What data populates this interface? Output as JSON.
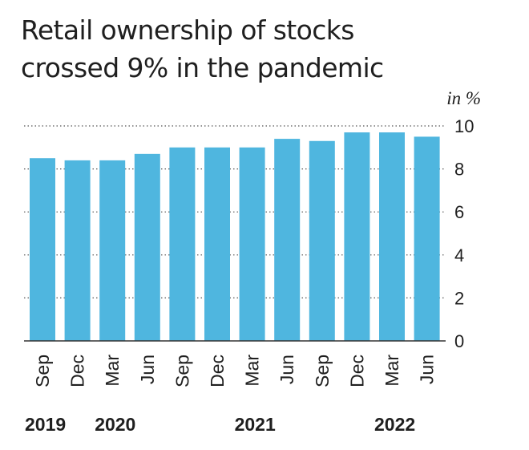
{
  "chart_data": {
    "type": "bar",
    "title": "Retail ownership of stocks crossed 9% in the pandemic",
    "title_lines": [
      "Retail ownership of stocks",
      "crossed 9% in the pandemic"
    ],
    "unit_label": "in %",
    "categories": [
      "Sep",
      "Dec",
      "Mar",
      "Jun",
      "Sep",
      "Dec",
      "Mar",
      "Jun",
      "Sep",
      "Dec",
      "Mar",
      "Jun"
    ],
    "values": [
      8.5,
      8.4,
      8.4,
      8.7,
      9.0,
      9.0,
      9.0,
      9.4,
      9.3,
      9.7,
      9.7,
      9.5
    ],
    "year_labels": [
      {
        "text": "2019",
        "category_index": 0
      },
      {
        "text": "2020",
        "category_index": 2
      },
      {
        "text": "2021",
        "category_index": 6
      },
      {
        "text": "2022",
        "category_index": 10
      }
    ],
    "ylim": [
      0,
      10
    ],
    "yticks": [
      0,
      2,
      4,
      6,
      8,
      10
    ],
    "grid": "dotted horizontal",
    "y_axis_side": "right",
    "bar_color": "#4fb6df",
    "grid_color": "#555555"
  }
}
